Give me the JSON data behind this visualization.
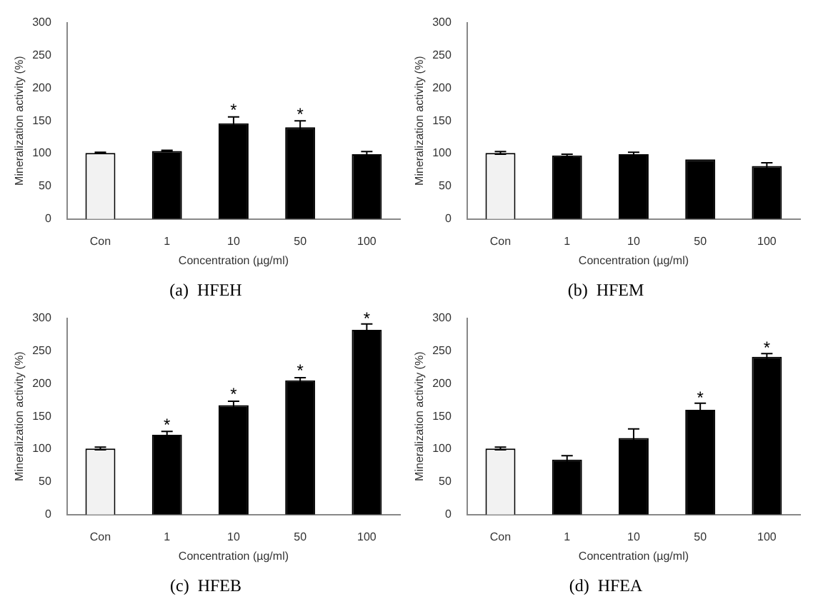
{
  "chart_data": [
    {
      "type": "bar",
      "title": "(a)  HFEH",
      "xlabel": "Concentration (µg/ml)",
      "ylabel": "Mineralization activity (%)",
      "categories": [
        "Con",
        "1",
        "10",
        "50",
        "100"
      ],
      "values": [
        101,
        104,
        146,
        140,
        99
      ],
      "errors": [
        1,
        1,
        10,
        10,
        4
      ],
      "colors": [
        "#f2f2f2",
        "#000000",
        "#000000",
        "#000000",
        "#000000"
      ],
      "ylim": [
        0,
        300
      ],
      "yticks": [
        0,
        50,
        100,
        150,
        200,
        250,
        300
      ],
      "annotations": [
        {
          "text": "*",
          "x": "10",
          "y": 165
        },
        {
          "text": "*",
          "x": "50",
          "y": 159
        }
      ]
    },
    {
      "type": "bar",
      "title": "(b)  HFEM",
      "xlabel": "Concentration (µg/ml)",
      "ylabel": "Mineralization activity (%)",
      "categories": [
        "Con",
        "1",
        "10",
        "50",
        "100"
      ],
      "values": [
        101,
        97,
        99,
        91,
        81
      ],
      "errors": [
        2,
        2,
        3,
        null,
        5
      ],
      "colors": [
        "#f2f2f2",
        "#000000",
        "#000000",
        "#000000",
        "#000000"
      ],
      "ylim": [
        0,
        300
      ],
      "yticks": [
        0,
        50,
        100,
        150,
        200,
        250,
        300
      ]
    },
    {
      "type": "bar",
      "title": "(c)  HFEB",
      "xlabel": "Concentration (µg/ml)",
      "ylabel": "Mineralization activity (%)",
      "categories": [
        "Con",
        "1",
        "10",
        "50",
        "100"
      ],
      "values": [
        101,
        122,
        167,
        205,
        282
      ],
      "errors": [
        2,
        5,
        6,
        4,
        9
      ],
      "colors": [
        "#f2f2f2",
        "#000000",
        "#000000",
        "#000000",
        "#000000"
      ],
      "ylim": [
        0,
        300
      ],
      "yticks": [
        0,
        50,
        100,
        150,
        200,
        250,
        300
      ],
      "annotations": [
        {
          "text": "*",
          "x": "1",
          "y": 136
        },
        {
          "text": "*",
          "x": "10",
          "y": 182
        },
        {
          "text": "*",
          "x": "50",
          "y": 218
        },
        {
          "text": "*",
          "x": "100",
          "y": 298
        }
      ]
    },
    {
      "type": "bar",
      "title": "(d)  HFEA",
      "xlabel": "Concentration (µg/ml)",
      "ylabel": "Mineralization activity (%)",
      "categories": [
        "Con",
        "1",
        "10",
        "50",
        "100"
      ],
      "values": [
        101,
        84,
        117,
        160,
        241
      ],
      "errors": [
        2,
        6,
        14,
        10,
        5
      ],
      "colors": [
        "#f2f2f2",
        "#000000",
        "#000000",
        "#000000",
        "#000000"
      ],
      "ylim": [
        0,
        300
      ],
      "yticks": [
        0,
        50,
        100,
        150,
        200,
        250,
        300
      ],
      "annotations": [
        {
          "text": "*",
          "x": "50",
          "y": 177
        },
        {
          "text": "*",
          "x": "100",
          "y": 253
        }
      ]
    }
  ]
}
